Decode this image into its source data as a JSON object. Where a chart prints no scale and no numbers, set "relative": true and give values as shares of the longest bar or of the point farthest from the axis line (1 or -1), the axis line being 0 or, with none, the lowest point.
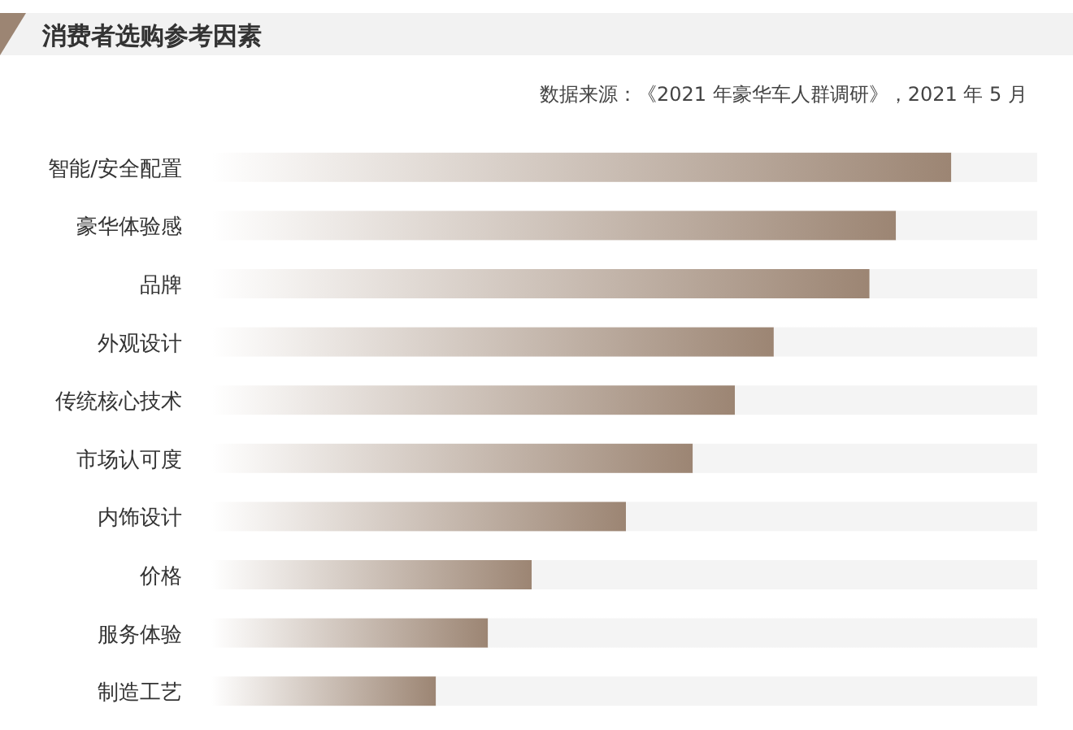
{
  "chart_data": {
    "type": "bar",
    "orientation": "horizontal",
    "relative": true,
    "stacked": true,
    "title": "消费者选购参考因素",
    "annotations": [
      "数据来源：《2021 年豪华车人群调研》，2021 年 5 月"
    ],
    "categories": [
      "智能/安全配置",
      "豪华体验感",
      "品牌",
      "外观设计",
      "传统核心技术",
      "市场认可度",
      "内饰设计",
      "价格",
      "服务体验",
      "制造工艺"
    ],
    "series": [
      {
        "color": "#9c8573",
        "values": [
          0.896,
          0.829,
          0.797,
          0.681,
          0.634,
          0.583,
          0.502,
          0.388,
          0.335,
          0.272
        ]
      },
      {
        "color": "#f4f4f4",
        "values": [
          0.104,
          0.171,
          0.203,
          0.319,
          0.366,
          0.417,
          0.498,
          0.612,
          0.665,
          0.728
        ]
      }
    ]
  }
}
